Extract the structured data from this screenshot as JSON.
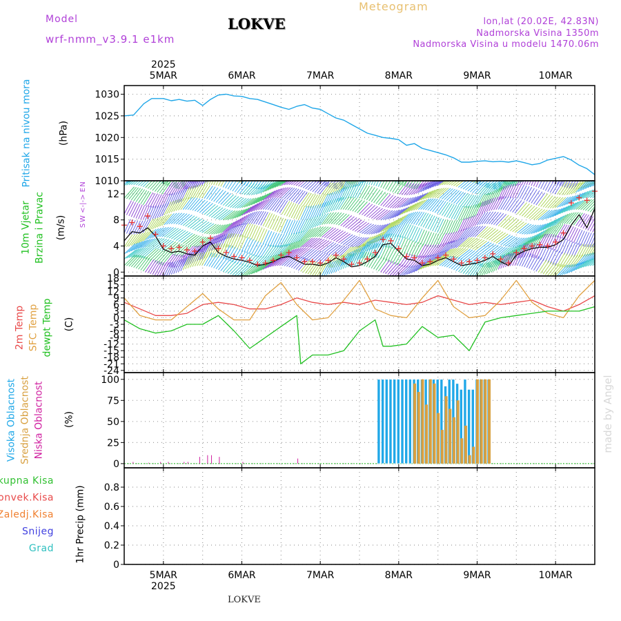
{
  "header": {
    "model_label": "Model",
    "model_name": "wrf-nmm_v3.9.1  e1km",
    "station": "LOKVE",
    "product": "Meteogram",
    "coords": "lon,lat (20.02E, 42.83N)",
    "altitude": "Nadmorska Visina 1350m",
    "model_altitude": "Nadmorska Visina u modelu 1470.06m",
    "footer_station": "LOKVE",
    "credit": "made by Angel"
  },
  "time_axis": {
    "year": "2025",
    "days": [
      "5MAR",
      "6MAR",
      "7MAR",
      "8MAR",
      "9MAR",
      "10MAR"
    ],
    "start_day": 4.5,
    "end_day": 10.5
  },
  "colors": {
    "pressure": "#1ea6e8",
    "wind_speed": "#000000",
    "gust": "#e83030",
    "temp_2m": "#e84848",
    "sfc_temp": "#e0a040",
    "dewpoint": "#20c020",
    "cloud_high": "#20a8e8",
    "cloud_mid": "#d8a040",
    "cloud_low": "#d020a0",
    "title_purple": "#b040d8",
    "title_orange": "#e8c070",
    "grid": "#9a9a9a"
  },
  "chart_data": [
    {
      "type": "line",
      "panel": "pressure",
      "title_lines": [
        "Pritisak na nivou mora"
      ],
      "ylabel": "(hPa)",
      "ylim": [
        1010,
        1032
      ],
      "yticks": [
        1010,
        1015,
        1020,
        1025,
        1030
      ],
      "grid": true,
      "series": [
        {
          "color": "#1ea6e8",
          "x": [
            4.5,
            4.62,
            4.75,
            4.85,
            5.0,
            5.1,
            5.2,
            5.3,
            5.4,
            5.5,
            5.6,
            5.7,
            5.8,
            5.9,
            6.0,
            6.1,
            6.2,
            6.3,
            6.4,
            6.5,
            6.6,
            6.7,
            6.8,
            6.9,
            7.0,
            7.1,
            7.2,
            7.3,
            7.4,
            7.5,
            7.6,
            7.7,
            7.8,
            7.9,
            8.0,
            8.1,
            8.2,
            8.3,
            8.4,
            8.5,
            8.6,
            8.7,
            8.8,
            8.9,
            9.0,
            9.1,
            9.2,
            9.3,
            9.4,
            9.5,
            9.6,
            9.7,
            9.8,
            9.9,
            10.0,
            10.1,
            10.2,
            10.3,
            10.4,
            10.5
          ],
          "y": [
            1025,
            1025.2,
            1027.8,
            1029,
            1029,
            1028.5,
            1028.8,
            1028.4,
            1028.6,
            1027.4,
            1028.8,
            1029.8,
            1030,
            1029.6,
            1029.5,
            1029,
            1028.8,
            1028.2,
            1027.6,
            1027,
            1026.5,
            1027.2,
            1027.6,
            1026.8,
            1026.5,
            1025.5,
            1024.5,
            1024,
            1023,
            1022,
            1021,
            1020.5,
            1020,
            1019.8,
            1019.5,
            1018.2,
            1018.6,
            1017.5,
            1017,
            1016.5,
            1016,
            1015.3,
            1014.3,
            1014.3,
            1014.5,
            1014.6,
            1014.4,
            1014.5,
            1014.3,
            1014.6,
            1014.2,
            1013.7,
            1014,
            1014.8,
            1015.2,
            1015.6,
            1014.8,
            1013.6,
            1012.8,
            1011.4
          ]
        }
      ]
    },
    {
      "type": "line",
      "panel": "wind",
      "title_lines": [
        "10m Vjetar",
        "Brzina i Pravac"
      ],
      "ylabel": "(m/s)",
      "direction_legend": [
        "N",
        "W  <-|->  E",
        "S"
      ],
      "ylim": [
        -0.6,
        14
      ],
      "yticks": [
        0,
        4,
        8,
        12
      ],
      "grid": true,
      "series": [
        {
          "name": "speed",
          "color": "#000000",
          "x": [
            4.5,
            4.6,
            4.7,
            4.8,
            4.9,
            5.0,
            5.1,
            5.2,
            5.3,
            5.4,
            5.5,
            5.6,
            5.7,
            5.8,
            5.9,
            6.0,
            6.1,
            6.2,
            6.3,
            6.4,
            6.5,
            6.6,
            6.7,
            6.8,
            6.9,
            7.0,
            7.1,
            7.2,
            7.3,
            7.4,
            7.5,
            7.6,
            7.7,
            7.8,
            7.9,
            8.0,
            8.1,
            8.2,
            8.3,
            8.4,
            8.5,
            8.6,
            8.7,
            8.8,
            8.9,
            9.0,
            9.1,
            9.2,
            9.3,
            9.4,
            9.5,
            9.6,
            9.7,
            9.8,
            9.9,
            10.0,
            10.1,
            10.2,
            10.3,
            10.4,
            10.5
          ],
          "y": [
            4.8,
            6.2,
            6.0,
            6.8,
            5.5,
            3.5,
            3.0,
            3.2,
            2.8,
            2.6,
            4.0,
            4.6,
            3.0,
            2.4,
            2.0,
            1.8,
            1.5,
            1.0,
            1.2,
            1.6,
            2.2,
            2.4,
            1.8,
            1.2,
            1.2,
            1.0,
            1.4,
            2.2,
            1.6,
            0.8,
            1.0,
            1.6,
            2.4,
            4.2,
            4.4,
            3.2,
            2.0,
            1.8,
            1.0,
            1.2,
            1.8,
            2.2,
            1.6,
            1.0,
            1.2,
            1.4,
            1.8,
            2.4,
            1.6,
            1.0,
            2.6,
            3.2,
            3.6,
            3.8,
            3.8,
            4.2,
            5.0,
            7.2,
            8.8,
            6.8,
            9.8
          ]
        },
        {
          "name": "gust",
          "color": "#e83030",
          "x": [
            4.5,
            4.6,
            4.7,
            4.8,
            4.9,
            5.0,
            5.1,
            5.2,
            5.3,
            5.4,
            5.5,
            5.6,
            5.7,
            5.8,
            5.9,
            6.0,
            6.1,
            6.2,
            6.3,
            6.4,
            6.5,
            6.6,
            6.7,
            6.8,
            6.9,
            7.0,
            7.1,
            7.2,
            7.3,
            7.4,
            7.5,
            7.6,
            7.7,
            7.8,
            7.9,
            8.0,
            8.1,
            8.2,
            8.3,
            8.4,
            8.5,
            8.6,
            8.7,
            8.8,
            8.9,
            9.0,
            9.1,
            9.2,
            9.3,
            9.4,
            9.5,
            9.6,
            9.7,
            9.8,
            9.9,
            10.0,
            10.1,
            10.2,
            10.3,
            10.4,
            10.5
          ],
          "y": [
            7.2,
            7.6,
            7.0,
            8.6,
            5.8,
            4.0,
            3.6,
            3.8,
            3.4,
            3.2,
            4.6,
            5.2,
            3.6,
            3.0,
            2.4,
            2.2,
            1.8,
            1.2,
            1.4,
            1.8,
            2.6,
            3.0,
            2.2,
            1.6,
            1.6,
            1.4,
            1.8,
            2.6,
            2.0,
            1.2,
            1.4,
            2.0,
            3.0,
            5.0,
            4.8,
            3.6,
            2.4,
            2.2,
            1.4,
            1.6,
            2.2,
            2.6,
            2.0,
            1.4,
            1.6,
            1.8,
            2.2,
            2.8,
            2.0,
            1.4,
            3.0,
            3.6,
            4.0,
            4.2,
            4.0,
            4.6,
            6.0,
            10.6,
            11.4,
            11.0,
            12.4
          ]
        }
      ]
    },
    {
      "type": "line",
      "panel": "temperature",
      "title_lines": [
        "2m Temp",
        "SFC Temp",
        "dewpt Temp"
      ],
      "ylabel": "(C)",
      "ylim": [
        -25,
        19
      ],
      "yticks": [
        18,
        15,
        12,
        9,
        6,
        3,
        0,
        -3,
        -6,
        -9,
        -12,
        -15,
        -18,
        -21,
        -24
      ],
      "grid": true,
      "series": [
        {
          "name": "2m Temp",
          "color": "#e84848",
          "x": [
            4.5,
            4.7,
            4.9,
            5.1,
            5.3,
            5.5,
            5.7,
            5.9,
            6.1,
            6.3,
            6.5,
            6.7,
            6.9,
            7.1,
            7.3,
            7.5,
            7.7,
            7.9,
            8.1,
            8.3,
            8.5,
            8.7,
            8.9,
            9.1,
            9.3,
            9.5,
            9.7,
            9.9,
            10.1,
            10.3,
            10.5
          ],
          "y": [
            7,
            4,
            1,
            1,
            2,
            6,
            7,
            6,
            4,
            4,
            6,
            9,
            7,
            6,
            7,
            6,
            8,
            7,
            6,
            7,
            10,
            8,
            6,
            7,
            6,
            7,
            8,
            5,
            3,
            6,
            10
          ]
        },
        {
          "name": "SFC Temp",
          "color": "#e0a040",
          "x": [
            4.5,
            4.7,
            4.9,
            5.1,
            5.3,
            5.5,
            5.7,
            5.9,
            6.1,
            6.3,
            6.5,
            6.7,
            6.9,
            7.1,
            7.3,
            7.5,
            7.7,
            7.9,
            8.1,
            8.3,
            8.5,
            8.7,
            8.9,
            9.1,
            9.3,
            9.5,
            9.7,
            9.9,
            10.1,
            10.3,
            10.5
          ],
          "y": [
            9,
            1,
            -1,
            -1,
            5,
            11,
            4,
            -1,
            -1,
            10,
            16,
            6,
            -1,
            0,
            8,
            17,
            4,
            1,
            0,
            9,
            17,
            5,
            0,
            1,
            8,
            17,
            7,
            2,
            0,
            10,
            17
          ]
        },
        {
          "name": "dewpt Temp",
          "color": "#20c020",
          "x": [
            4.5,
            4.7,
            4.9,
            5.1,
            5.3,
            5.5,
            5.7,
            5.9,
            6.1,
            6.3,
            6.5,
            6.7,
            6.75,
            6.9,
            7.1,
            7.3,
            7.5,
            7.7,
            7.8,
            7.9,
            8.1,
            8.3,
            8.5,
            8.7,
            8.9,
            9.1,
            9.3,
            9.5,
            9.7,
            9.9,
            10.1,
            10.3,
            10.5
          ],
          "y": [
            -1,
            -5,
            -7,
            -6,
            -3,
            -3,
            1,
            -6,
            -14,
            -9,
            -4,
            1,
            -21,
            -17,
            -17,
            -15,
            -6,
            -1,
            -13,
            -13,
            -12,
            -4,
            -9,
            -8,
            -15,
            -2,
            0,
            1,
            2,
            3,
            3,
            3,
            5
          ]
        }
      ]
    },
    {
      "type": "bar",
      "panel": "clouds",
      "title_lines": [
        "Visoka Oblacnost",
        "Srednja Oblacnost",
        "Niska Oblacnost"
      ],
      "ylabel": "(%)",
      "ylim": [
        -5,
        108
      ],
      "yticks": [
        0,
        25,
        50,
        75,
        100
      ],
      "grid": true,
      "series": [
        {
          "name": "Visoka Oblacnost",
          "color": "#20a8e8",
          "x": [
            7.75,
            7.8,
            7.85,
            7.9,
            7.95,
            8.0,
            8.05,
            8.1,
            8.15,
            8.2,
            8.25,
            8.3,
            8.35,
            8.4,
            8.45,
            8.5,
            8.55,
            8.6,
            8.65,
            8.7,
            8.75,
            8.8,
            8.85,
            8.9,
            8.95,
            9.0,
            9.05,
            9.1,
            9.15
          ],
          "values": [
            100,
            100,
            100,
            100,
            100,
            100,
            100,
            100,
            100,
            100,
            100,
            100,
            100,
            100,
            100,
            100,
            100,
            92,
            100,
            100,
            95,
            88,
            100,
            88,
            88,
            100,
            100,
            100,
            100
          ]
        },
        {
          "name": "Srednja Oblacnost",
          "color": "#d8a040",
          "x": [
            8.2,
            8.25,
            8.3,
            8.35,
            8.4,
            8.45,
            8.5,
            8.55,
            8.6,
            8.65,
            8.7,
            8.75,
            8.8,
            8.85,
            8.9,
            8.95,
            9.0,
            9.05,
            9.1,
            9.15
          ],
          "values": [
            95,
            85,
            100,
            70,
            100,
            95,
            60,
            40,
            80,
            65,
            55,
            75,
            30,
            45,
            10,
            20,
            100,
            100,
            100,
            100
          ]
        },
        {
          "name": "Niska Oblacnost",
          "color": "#d020a0",
          "x": [
            4.6,
            4.8,
            4.95,
            5.05,
            5.25,
            5.3,
            5.45,
            5.55,
            5.6,
            5.7,
            6.0,
            6.7
          ],
          "values": [
            2,
            1,
            2,
            2,
            2,
            2,
            8,
            10,
            10,
            8,
            2,
            6
          ]
        }
      ]
    },
    {
      "type": "bar",
      "panel": "precip",
      "title_lines": [
        "Ukupna Kisa",
        "Konvek.Kisa",
        "Zaledj.Kisa",
        "Snijeg",
        "Grad"
      ],
      "legend_colors": [
        "#30c030",
        "#e84848",
        "#f08030",
        "#4040e0",
        "#30c0c0"
      ],
      "ylabel": "1hr Precip (mm)",
      "ylim": [
        0,
        1.0
      ],
      "yticks": [
        0,
        0.2,
        0.4,
        0.6,
        0.8
      ],
      "grid": true,
      "series": []
    }
  ]
}
